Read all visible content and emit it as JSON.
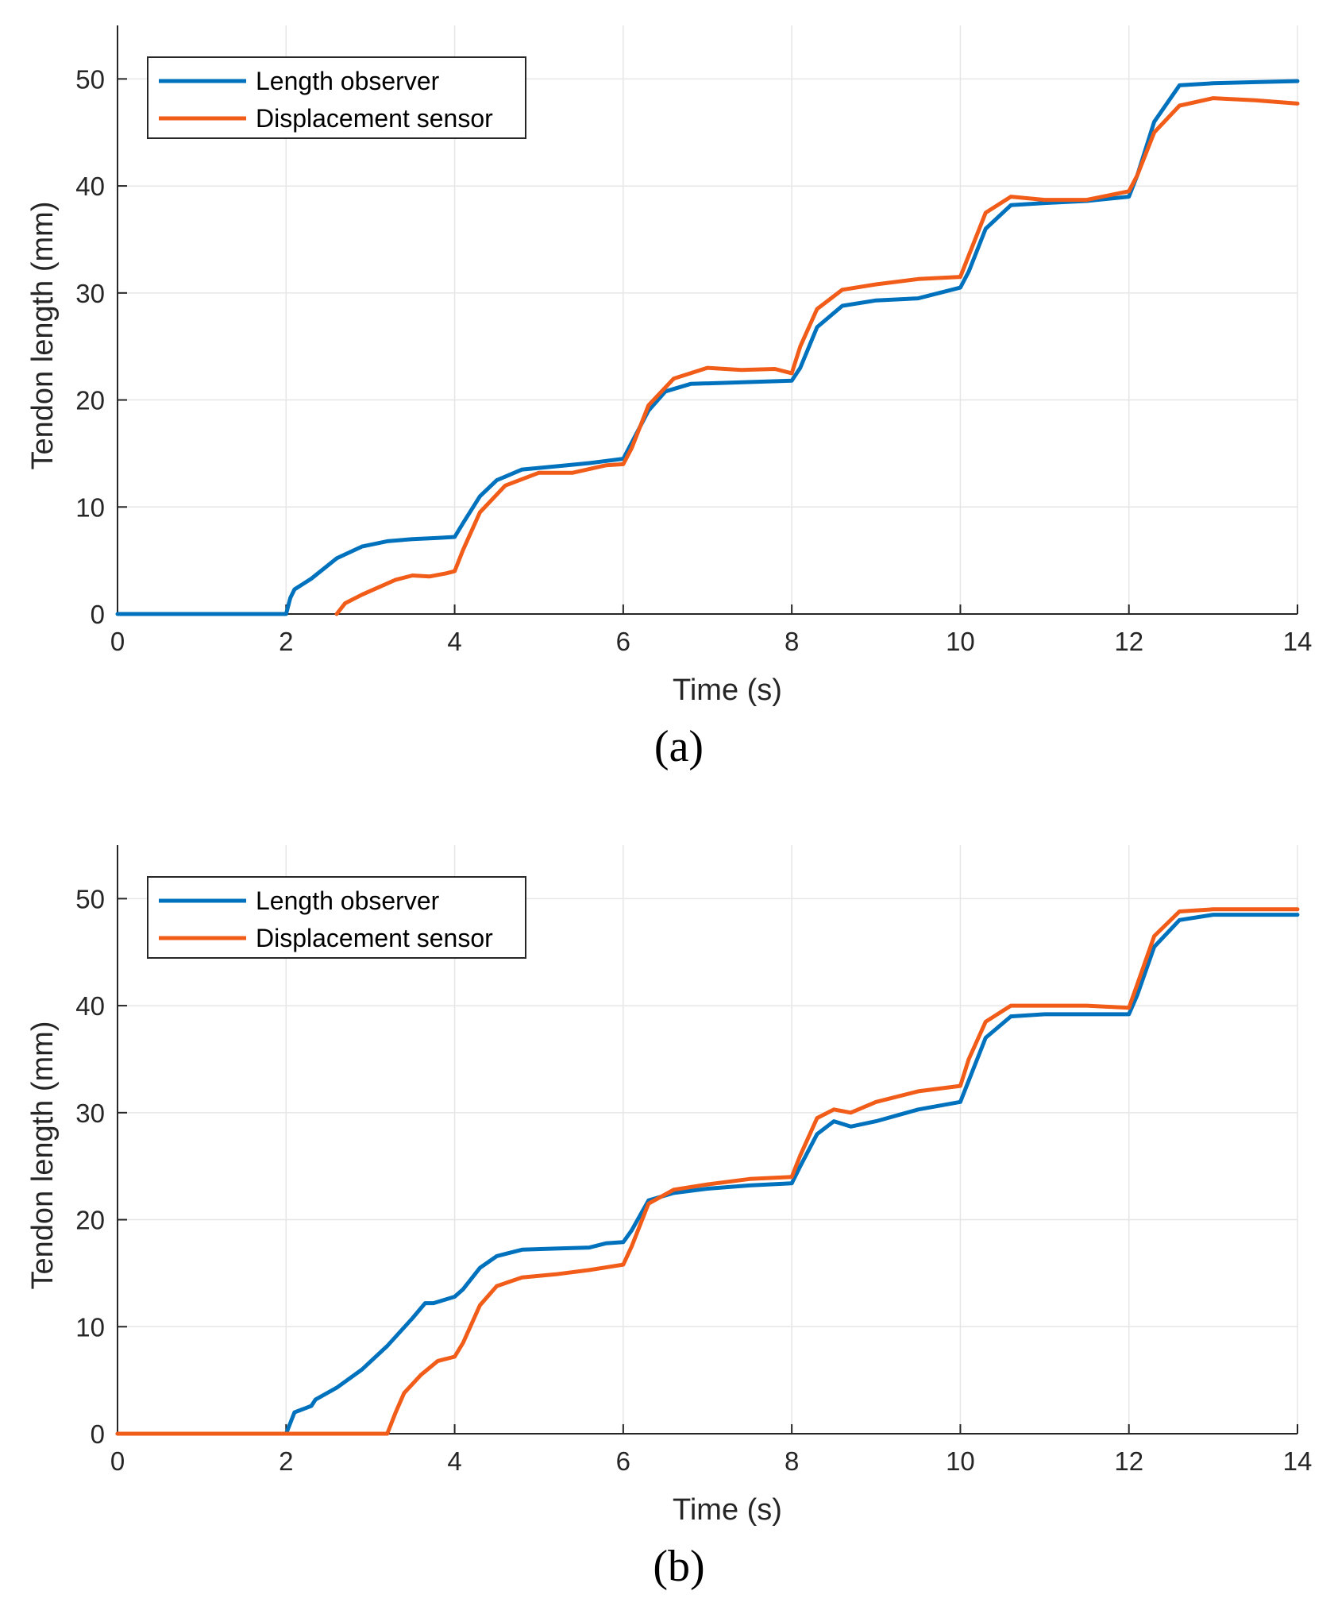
{
  "colors": {
    "length_observer": "#0072BD",
    "displacement_sensor": "#F25C19",
    "grid": "#E6E6E6",
    "axis": "#262626"
  },
  "chart_data": [
    {
      "type": "line",
      "caption": "(a)",
      "xlabel": "Time (s)",
      "ylabel": "Tendon length (mm)",
      "xlim": [
        0,
        14
      ],
      "ylim": [
        0,
        55
      ],
      "xticks": [
        0,
        2,
        4,
        6,
        8,
        10,
        12,
        14
      ],
      "yticks": [
        0,
        10,
        20,
        30,
        40,
        50
      ],
      "grid": true,
      "legend_position": "top-left",
      "series": [
        {
          "name": "Length observer",
          "x": [
            0,
            2.0,
            2.05,
            2.1,
            2.3,
            2.6,
            2.9,
            3.2,
            3.5,
            3.8,
            4.0,
            4.1,
            4.3,
            4.5,
            4.8,
            5.2,
            5.6,
            6.0,
            6.1,
            6.3,
            6.5,
            6.8,
            7.2,
            7.6,
            8.0,
            8.1,
            8.3,
            8.6,
            9.0,
            9.5,
            10.0,
            10.1,
            10.3,
            10.6,
            11.0,
            11.5,
            12.0,
            12.1,
            12.3,
            12.6,
            13.0,
            13.5,
            14.0
          ],
          "y": [
            0,
            0,
            1.5,
            2.3,
            3.3,
            5.2,
            6.3,
            6.8,
            7.0,
            7.1,
            7.2,
            8.5,
            11.0,
            12.5,
            13.5,
            13.8,
            14.1,
            14.5,
            16.0,
            19.0,
            20.8,
            21.5,
            21.6,
            21.7,
            21.8,
            23.0,
            26.8,
            28.8,
            29.3,
            29.5,
            30.5,
            32.0,
            36.0,
            38.2,
            38.4,
            38.6,
            39.0,
            41.0,
            46.0,
            49.4,
            49.6,
            49.7,
            49.8
          ]
        },
        {
          "name": "Displacement sensor",
          "x": [
            2.6,
            2.7,
            2.9,
            3.1,
            3.3,
            3.5,
            3.7,
            3.9,
            4.0,
            4.1,
            4.3,
            4.6,
            5.0,
            5.4,
            5.8,
            6.0,
            6.1,
            6.3,
            6.6,
            7.0,
            7.4,
            7.8,
            8.0,
            8.1,
            8.3,
            8.6,
            9.0,
            9.5,
            10.0,
            10.1,
            10.3,
            10.6,
            11.0,
            11.5,
            12.0,
            12.1,
            12.3,
            12.6,
            13.0,
            13.5,
            14.0
          ],
          "y": [
            0,
            1.0,
            1.8,
            2.5,
            3.2,
            3.6,
            3.5,
            3.8,
            4.0,
            6.0,
            9.5,
            12.0,
            13.2,
            13.2,
            13.9,
            14.0,
            15.5,
            19.5,
            22.0,
            23.0,
            22.8,
            22.9,
            22.5,
            25.0,
            28.5,
            30.3,
            30.8,
            31.3,
            31.5,
            33.5,
            37.5,
            39.0,
            38.7,
            38.7,
            39.5,
            41.0,
            45.0,
            47.5,
            48.2,
            48.0,
            47.7
          ]
        }
      ]
    },
    {
      "type": "line",
      "caption": "(b)",
      "xlabel": "Time (s)",
      "ylabel": "Tendon length (mm)",
      "xlim": [
        0,
        14
      ],
      "ylim": [
        0,
        55
      ],
      "xticks": [
        0,
        2,
        4,
        6,
        8,
        10,
        12,
        14
      ],
      "yticks": [
        0,
        10,
        20,
        30,
        40,
        50
      ],
      "grid": true,
      "legend_position": "top-left",
      "series": [
        {
          "name": "Length observer",
          "x": [
            0,
            2.0,
            2.05,
            2.1,
            2.3,
            2.35,
            2.6,
            2.9,
            3.2,
            3.5,
            3.65,
            3.75,
            4.0,
            4.1,
            4.3,
            4.5,
            4.8,
            5.2,
            5.6,
            5.8,
            6.0,
            6.1,
            6.3,
            6.6,
            7.0,
            7.5,
            8.0,
            8.1,
            8.3,
            8.5,
            8.7,
            9.0,
            9.5,
            10.0,
            10.1,
            10.3,
            10.6,
            11.0,
            11.5,
            12.0,
            12.1,
            12.3,
            12.6,
            13.0,
            13.5,
            14.0
          ],
          "y": [
            0,
            0,
            1.0,
            2.0,
            2.6,
            3.2,
            4.3,
            6.0,
            8.2,
            10.8,
            12.2,
            12.2,
            12.8,
            13.5,
            15.5,
            16.6,
            17.2,
            17.3,
            17.4,
            17.8,
            17.9,
            19.0,
            21.8,
            22.5,
            22.9,
            23.2,
            23.4,
            25.0,
            28.0,
            29.2,
            28.7,
            29.2,
            30.3,
            31.0,
            33.0,
            37.0,
            39.0,
            39.2,
            39.2,
            39.2,
            41.0,
            45.5,
            48.0,
            48.5,
            48.5,
            48.5
          ]
        },
        {
          "name": "Displacement sensor",
          "x": [
            0,
            3.2,
            3.3,
            3.4,
            3.6,
            3.8,
            4.0,
            4.1,
            4.3,
            4.5,
            4.8,
            5.2,
            5.6,
            6.0,
            6.1,
            6.3,
            6.6,
            7.0,
            7.5,
            8.0,
            8.1,
            8.3,
            8.5,
            8.7,
            9.0,
            9.5,
            10.0,
            10.1,
            10.3,
            10.6,
            11.0,
            11.5,
            12.0,
            12.1,
            12.3,
            12.6,
            13.0,
            13.5,
            14.0
          ],
          "y": [
            0,
            0,
            2.0,
            3.8,
            5.5,
            6.8,
            7.2,
            8.5,
            12.0,
            13.8,
            14.6,
            14.9,
            15.3,
            15.8,
            17.5,
            21.5,
            22.8,
            23.3,
            23.8,
            24.0,
            26.0,
            29.5,
            30.3,
            30.0,
            31.0,
            32.0,
            32.5,
            35.0,
            38.5,
            40.0,
            40.0,
            40.0,
            39.8,
            42.0,
            46.5,
            48.8,
            49.0,
            49.0,
            49.0
          ]
        }
      ]
    }
  ]
}
